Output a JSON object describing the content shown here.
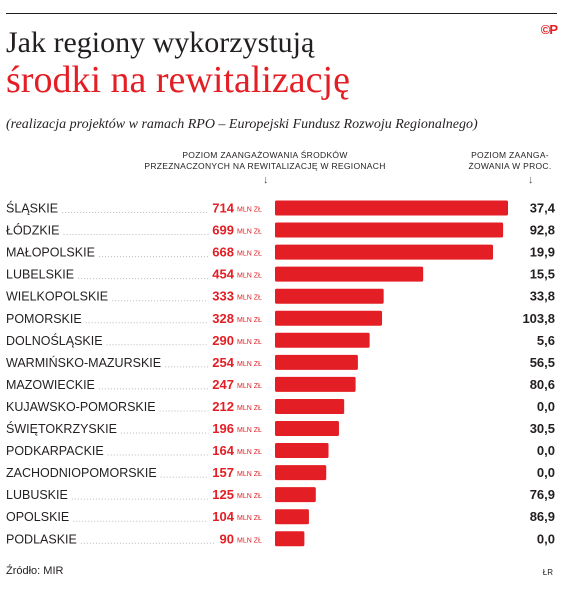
{
  "header": {
    "title_line1": "Jak regiony wykorzystują",
    "title_line2": "środki na rewitalizację",
    "subtitle": "(realizacja projektów w ramach RPO – Europejski Fundusz Rozwoju Regionalnego)",
    "logo": "©P",
    "col_left_line1": "POZIOM ZAANGAŻOWANIA ŚRODKÓW",
    "col_left_line2": "PRZEZNACZONYCH NA REWITALIZACJĘ W REGIONACH",
    "col_right_line1": "POZIOM ZAANGA-",
    "col_right_line2": "ŻOWANIA W PROC.",
    "arrow": "↓"
  },
  "footer": {
    "source": "Źródło: MIR",
    "initials": "ŁR"
  },
  "colors": {
    "accent": "#e31e24",
    "text": "#231f20",
    "dots": "#b9b9b9"
  },
  "chart_data": {
    "type": "bar",
    "orientation": "horizontal",
    "unit": "MLN ZŁ",
    "categories": [
      "ŚLĄSKIE",
      "ŁÓDZKIE",
      "MAŁOPOLSKIE",
      "LUBELSKIE",
      "WIELKOPOLSKIE",
      "POMORSKIE",
      "DOLNOŚLĄSKIE",
      "WARMIŃSKO-MAZURSKIE",
      "MAZOWIECKIE",
      "KUJAWSKO-POMORSKIE",
      "ŚWIĘTOKRZYSKIE",
      "PODKARPACKIE",
      "ZACHODNIOPOMORSKIE",
      "LUBUSKIE",
      "OPOLSKIE",
      "PODLASKIE"
    ],
    "values": [
      714,
      699,
      668,
      454,
      333,
      328,
      290,
      254,
      247,
      212,
      196,
      164,
      157,
      125,
      104,
      90
    ],
    "percent_labels": [
      "37,4",
      "92,8",
      "19,9",
      "15,5",
      "33,8",
      "103,8",
      "5,6",
      "56,5",
      "80,6",
      "0,0",
      "30,5",
      "0,0",
      "0,0",
      "76,9",
      "86,9",
      "0,0"
    ],
    "xlim": [
      0,
      714
    ]
  }
}
